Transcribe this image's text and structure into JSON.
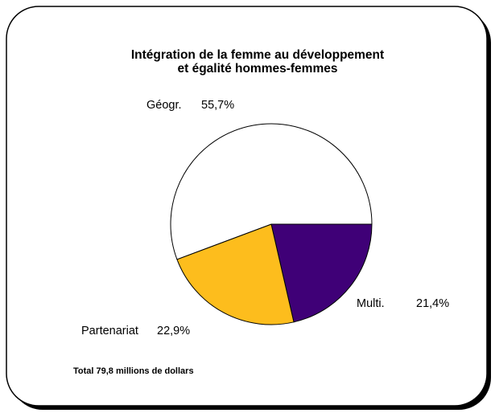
{
  "chart_data": {
    "type": "pie",
    "title": [
      "Intégration de la femme au développement",
      "et égalité hommes-femmes"
    ],
    "categories": [
      "Multi.",
      "Partenariat",
      "Géogr."
    ],
    "values": [
      21.4,
      22.9,
      55.7
    ],
    "value_labels": [
      "21,4%",
      "22,9%",
      "55,7%"
    ],
    "colors": [
      "#3f0077",
      "#fdbd1d",
      "#ffffff"
    ],
    "footnote": "Total 79,8 millions de dollars"
  }
}
